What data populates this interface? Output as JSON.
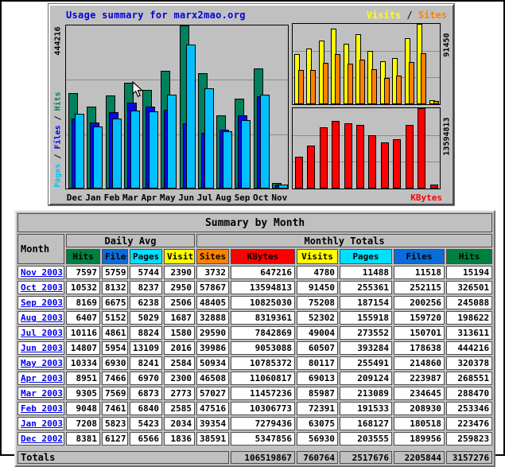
{
  "chart": {
    "title": "Usage summary for marx2mao.org",
    "legend_visits": "Visits",
    "legend_sep": " / ",
    "legend_sites": "Sites",
    "left_axis_max_label": "444216",
    "left_axis_pages": "Pages",
    "left_axis_sep1": " / ",
    "left_axis_files": "Files",
    "left_axis_sep2": " / ",
    "left_axis_hits": "Hits",
    "right_top_axis_max_label": "91450",
    "right_bottom_axis_max_label": "13594813",
    "kbytes_label": "KBytes",
    "colors": {
      "hits_bar": "#00805C",
      "files_bar": "#0808F0",
      "pages_bar": "#00C0FF",
      "visits_bar": "#FFFF00",
      "sites_bar": "#FF8000",
      "kbytes_bar": "#FF0000",
      "title_text": "#0000E0",
      "visits_text": "#FFFF00",
      "sites_text": "#FF8000",
      "kbytes_text": "#FF0000",
      "hits_text": "#00805C",
      "files_text": "#0000F0",
      "pages_text": "#00C0FF",
      "chart_background": "#C0C0C0"
    }
  },
  "chart_data": [
    {
      "type": "bar",
      "title": "Usage summary for marx2mao.org",
      "categories": [
        "Dec",
        "Jan",
        "Feb",
        "Mar",
        "Apr",
        "May",
        "Jun",
        "Jul",
        "Aug",
        "Sep",
        "Oct",
        "Nov"
      ],
      "series": [
        {
          "name": "Hits",
          "color": "#00805C",
          "values": [
            259823,
            223476,
            253346,
            288470,
            268551,
            320378,
            444216,
            313611,
            198622,
            245088,
            326501,
            15194
          ]
        },
        {
          "name": "Files",
          "color": "#0808F0",
          "values": [
            189956,
            180518,
            208930,
            234645,
            223987,
            214860,
            178638,
            150701,
            159720,
            200256,
            252115,
            11518
          ]
        },
        {
          "name": "Pages",
          "color": "#00C0FF",
          "values": [
            203555,
            168127,
            191533,
            213089,
            209124,
            255491,
            393284,
            273552,
            155918,
            187154,
            255361,
            11488
          ]
        }
      ],
      "ylabel": "Pages / Files / Hits",
      "ylim": [
        0,
        444216
      ],
      "grid": "thirds",
      "legend_position": "left-axis"
    },
    {
      "type": "bar",
      "title": "Visits / Sites",
      "categories": [
        "Dec",
        "Jan",
        "Feb",
        "Mar",
        "Apr",
        "May",
        "Jun",
        "Jul",
        "Aug",
        "Sep",
        "Oct",
        "Nov"
      ],
      "series": [
        {
          "name": "Visits",
          "color": "#FFFF00",
          "values": [
            56930,
            63075,
            72391,
            85987,
            69013,
            80117,
            60507,
            49004,
            52302,
            75208,
            91450,
            4780
          ]
        },
        {
          "name": "Sites",
          "color": "#FF8000",
          "values": [
            38591,
            39354,
            47516,
            57027,
            46508,
            50934,
            39986,
            29590,
            32888,
            48405,
            57867,
            3732
          ]
        }
      ],
      "ylim": [
        0,
        91450
      ],
      "grid": "thirds",
      "legend_position": "top-right"
    },
    {
      "type": "bar",
      "title": "KBytes",
      "categories": [
        "Dec",
        "Jan",
        "Feb",
        "Mar",
        "Apr",
        "May",
        "Jun",
        "Jul",
        "Aug",
        "Sep",
        "Oct",
        "Nov"
      ],
      "series": [
        {
          "name": "KBytes",
          "color": "#FF0000",
          "values": [
            5347856,
            7279436,
            10306773,
            11457236,
            11060817,
            10785372,
            9053088,
            7842869,
            8319361,
            10825030,
            13594813,
            647216
          ]
        }
      ],
      "ylim": [
        0,
        13594813
      ],
      "grid": "thirds",
      "legend_position": "bottom-right"
    }
  ],
  "table": {
    "title": "Summary by Month",
    "col_month": "Month",
    "group_daily": "Daily Avg",
    "group_monthly": "Monthly Totals",
    "daily_headers": [
      {
        "label": "Hits",
        "color": "#008040"
      },
      {
        "label": "Files",
        "color": "#0A6CD8"
      },
      {
        "label": "Pages",
        "color": "#00E0FF"
      },
      {
        "label": "Visits",
        "color": "#FFFF00"
      }
    ],
    "monthly_headers": [
      {
        "label": "Sites",
        "color": "#FF8000"
      },
      {
        "label": "KBytes",
        "color": "#FF0000"
      },
      {
        "label": "Visits",
        "color": "#FFFF00"
      },
      {
        "label": "Pages",
        "color": "#00E0FF"
      },
      {
        "label": "Files",
        "color": "#0A6CD8"
      },
      {
        "label": "Hits",
        "color": "#008040"
      }
    ],
    "rows": [
      {
        "month": "Nov 2003",
        "values": [
          7597,
          5759,
          5744,
          2390,
          3732,
          647216,
          4780,
          11488,
          11518,
          15194
        ]
      },
      {
        "month": "Oct 2003",
        "values": [
          10532,
          8132,
          8237,
          2950,
          57867,
          13594813,
          91450,
          255361,
          252115,
          326501
        ]
      },
      {
        "month": "Sep 2003",
        "values": [
          8169,
          6675,
          6238,
          2506,
          48405,
          10825030,
          75208,
          187154,
          200256,
          245088
        ]
      },
      {
        "month": "Aug 2003",
        "values": [
          6407,
          5152,
          5029,
          1687,
          32888,
          8319361,
          52302,
          155918,
          159720,
          198622
        ]
      },
      {
        "month": "Jul 2003",
        "values": [
          10116,
          4861,
          8824,
          1580,
          29590,
          7842869,
          49004,
          273552,
          150701,
          313611
        ]
      },
      {
        "month": "Jun 2003",
        "values": [
          14807,
          5954,
          13109,
          2016,
          39986,
          9053088,
          60507,
          393284,
          178638,
          444216
        ]
      },
      {
        "month": "May 2003",
        "values": [
          10334,
          6930,
          8241,
          2584,
          50934,
          10785372,
          80117,
          255491,
          214860,
          320378
        ]
      },
      {
        "month": "Apr 2003",
        "values": [
          8951,
          7466,
          6970,
          2300,
          46508,
          11060817,
          69013,
          209124,
          223987,
          268551
        ]
      },
      {
        "month": "Mar 2003",
        "values": [
          9305,
          7569,
          6873,
          2773,
          57027,
          11457236,
          85987,
          213089,
          234645,
          288470
        ]
      },
      {
        "month": "Feb 2003",
        "values": [
          9048,
          7461,
          6840,
          2585,
          47516,
          10306773,
          72391,
          191533,
          208930,
          253346
        ]
      },
      {
        "month": "Jan 2003",
        "values": [
          7208,
          5823,
          5423,
          2034,
          39354,
          7279436,
          63075,
          168127,
          180518,
          223476
        ]
      },
      {
        "month": "Dec 2002",
        "values": [
          8381,
          6127,
          6566,
          1836,
          38591,
          5347856,
          56930,
          203555,
          189956,
          259823
        ]
      }
    ],
    "totals_label": "Totals",
    "totals": [
      106519867,
      760764,
      2517676,
      2205844,
      3157276
    ]
  }
}
